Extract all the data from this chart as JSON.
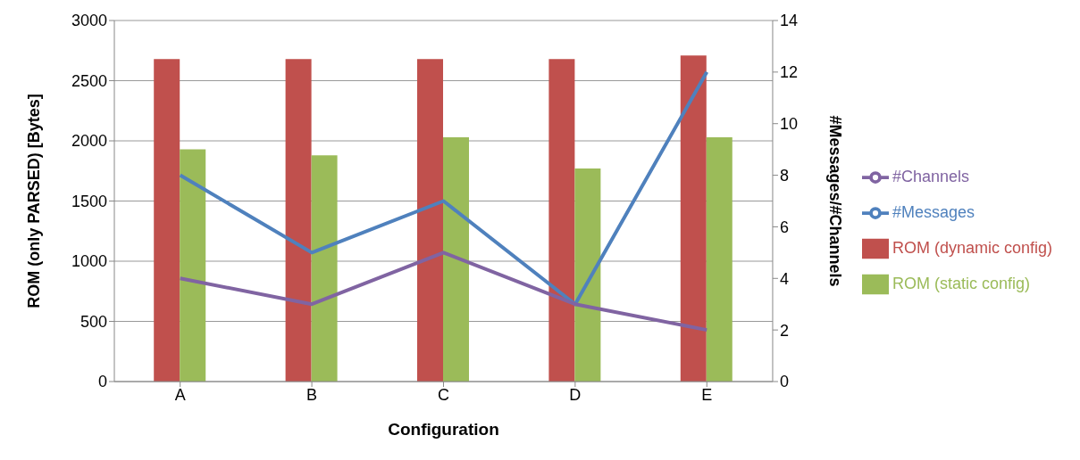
{
  "chart_data": {
    "type": "bar",
    "xlabel": "Configuration",
    "ylabel": "ROM (only PARSED) [Bytes]",
    "y2label": "#Messages/#Channels",
    "categories": [
      "A",
      "B",
      "C",
      "D",
      "E"
    ],
    "series": [
      {
        "name": "ROM (dynamic config)",
        "color": "#c0504d",
        "values": [
          2680,
          2680,
          2680,
          2680,
          2710
        ]
      },
      {
        "name": "ROM (static config)",
        "color": "#9bbb59",
        "values": [
          1930,
          1880,
          2030,
          1770,
          2030
        ]
      },
      {
        "name": "#Messages",
        "type": "line",
        "axis": "y2",
        "color": "#4f81bd",
        "values": [
          8,
          5,
          7,
          3,
          12
        ]
      },
      {
        "name": "#Channels",
        "type": "line",
        "axis": "y2",
        "color": "#8064a2",
        "values": [
          4,
          3,
          5,
          3,
          2
        ]
      }
    ],
    "ylim": [
      0,
      3000
    ],
    "yticks": [
      0,
      500,
      1000,
      1500,
      2000,
      2500,
      3000
    ],
    "y2lim": [
      0,
      14
    ],
    "y2ticks": [
      0,
      2,
      4,
      6,
      8,
      10,
      12,
      14
    ],
    "grid": "y",
    "legend": "right",
    "marker": "none"
  }
}
